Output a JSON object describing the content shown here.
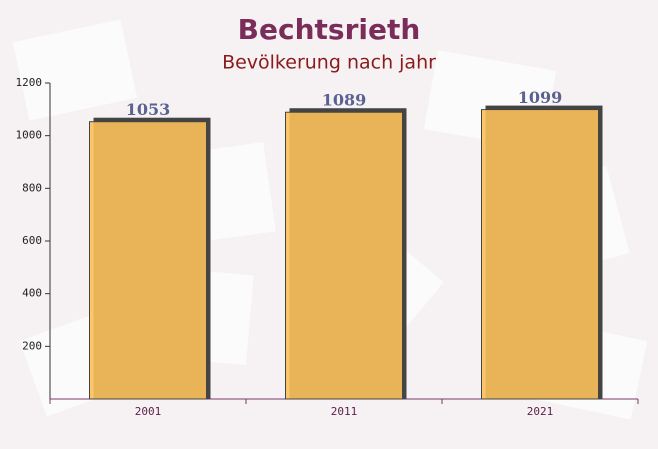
{
  "chart_data": {
    "type": "bar",
    "title": "Bechtsrieth",
    "subtitle": "Bevölkerung nach jahr",
    "categories": [
      "2001",
      "2011",
      "2021"
    ],
    "values": [
      1053,
      1089,
      1099
    ],
    "color": "#fcc15a",
    "ylim": [
      0,
      1200
    ],
    "yticks": [
      200,
      400,
      600,
      800,
      1000,
      1200
    ]
  }
}
